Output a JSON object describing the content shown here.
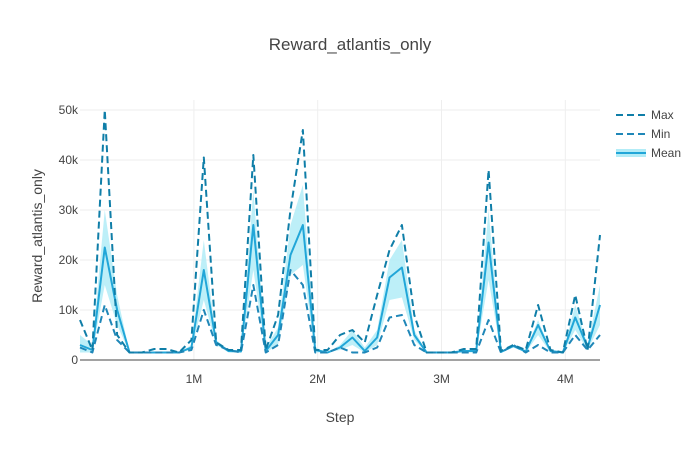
{
  "chart_data": {
    "type": "line",
    "title": "Reward_atlantis_only",
    "xlabel": "Step",
    "ylabel": "Reward_atlantis_only",
    "xlim": [
      80000,
      4280000
    ],
    "ylim": [
      0,
      52000
    ],
    "xticks": [
      {
        "value": 1000000,
        "label": "1M"
      },
      {
        "value": 2000000,
        "label": "2M"
      },
      {
        "value": 3000000,
        "label": "3M"
      },
      {
        "value": 4000000,
        "label": "4M"
      }
    ],
    "yticks": [
      {
        "value": 0,
        "label": "0"
      },
      {
        "value": 10000,
        "label": "10k"
      },
      {
        "value": 20000,
        "label": "20k"
      },
      {
        "value": 30000,
        "label": "30k"
      },
      {
        "value": 40000,
        "label": "40k"
      },
      {
        "value": 50000,
        "label": "50k"
      }
    ],
    "grid": true,
    "legend_position": "top-right",
    "x": [
      80000,
      180000,
      280000,
      380000,
      480000,
      580000,
      680000,
      780000,
      880000,
      980000,
      1080000,
      1180000,
      1280000,
      1380000,
      1480000,
      1580000,
      1680000,
      1780000,
      1880000,
      1980000,
      2080000,
      2180000,
      2280000,
      2380000,
      2480000,
      2580000,
      2680000,
      2780000,
      2880000,
      2980000,
      3080000,
      3180000,
      3280000,
      3380000,
      3480000,
      3580000,
      3680000,
      3780000,
      3880000,
      3980000,
      4080000,
      4180000,
      4280000
    ],
    "series": [
      {
        "name": "Max",
        "color": "#0f7ea8",
        "dash": "dash",
        "values": [
          8000,
          2000,
          50000,
          5000,
          1500,
          1500,
          2200,
          2200,
          1500,
          4000,
          40500,
          3500,
          2000,
          2000,
          41000,
          2000,
          9000,
          30000,
          46000,
          2000,
          2000,
          5000,
          6000,
          3500,
          13000,
          22000,
          27000,
          9000,
          1500,
          1500,
          1500,
          2200,
          2200,
          38000,
          1800,
          3000,
          2000,
          11000,
          2000,
          1500,
          13000,
          2000,
          25000
        ]
      },
      {
        "name": "Min",
        "color": "#1f87b8",
        "dash": "dash",
        "values": [
          2500,
          1500,
          11000,
          4000,
          1500,
          1500,
          1500,
          1500,
          1500,
          2000,
          10000,
          3000,
          2000,
          1500,
          15000,
          1500,
          3000,
          18000,
          15000,
          1500,
          1500,
          2500,
          1500,
          1500,
          2500,
          8500,
          9000,
          3000,
          1500,
          1500,
          1500,
          1500,
          1500,
          8000,
          1500,
          3000,
          1500,
          3000,
          1500,
          1500,
          5000,
          2000,
          5000
        ]
      },
      {
        "name": "Mean",
        "color": "#21a6d8",
        "dash": "solid",
        "values": [
          3000,
          2000,
          22500,
          10000,
          1500,
          1500,
          1500,
          1500,
          1500,
          2500,
          18000,
          3500,
          1800,
          1700,
          27000,
          1800,
          5000,
          21000,
          27000,
          2000,
          1500,
          2500,
          4500,
          1800,
          4500,
          16500,
          18500,
          5000,
          1500,
          1500,
          1500,
          1800,
          1800,
          23500,
          1600,
          2800,
          1700,
          7000,
          1800,
          1500,
          8500,
          2500,
          11000
        ]
      }
    ],
    "band": {
      "color": "#b2ecf7",
      "lower": [
        1500,
        1500,
        15000,
        7000,
        1500,
        1500,
        1500,
        1500,
        1500,
        2000,
        12000,
        3000,
        1500,
        1500,
        18000,
        1500,
        3000,
        17000,
        19000,
        1500,
        1500,
        2000,
        3000,
        1500,
        3000,
        12000,
        12500,
        4000,
        1500,
        1500,
        1500,
        1500,
        1500,
        16000,
        1500,
        2500,
        1500,
        5000,
        1500,
        1500,
        6000,
        2000,
        7000
      ],
      "upper": [
        5000,
        3000,
        30000,
        13000,
        1500,
        1500,
        1500,
        1500,
        1500,
        3000,
        24000,
        4000,
        2000,
        2000,
        34000,
        2500,
        6500,
        27000,
        35000,
        2500,
        1500,
        3000,
        6000,
        2500,
        6000,
        20000,
        24000,
        6000,
        1500,
        1500,
        1500,
        2000,
        2000,
        30000,
        1700,
        3000,
        2000,
        8000,
        2000,
        1500,
        11000,
        3000,
        15000
      ]
    }
  }
}
